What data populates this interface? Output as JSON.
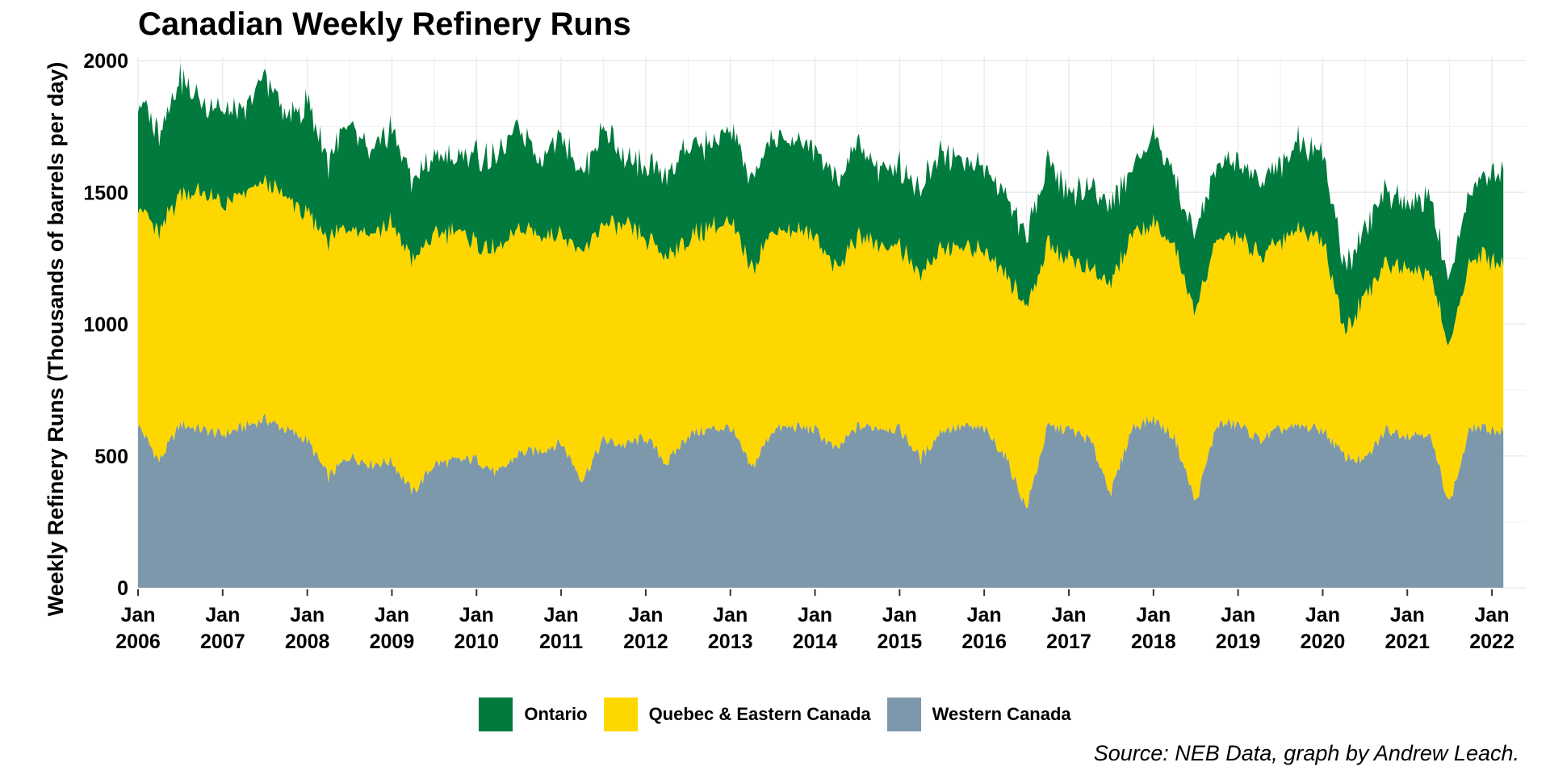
{
  "colors": {
    "ontario": "#007A3D",
    "quebec": "#FFD700",
    "western": "#7D98AA",
    "grid": "#EBEBEB"
  },
  "source": "Source: NEB Data, graph by Andrew Leach.",
  "chart_data": {
    "type": "area",
    "stacked": true,
    "title": "Canadian Weekly Refinery Runs",
    "xlabel": "",
    "ylabel": "Weekly Refinery Runs (Thousands of barrels per day)",
    "xlim": [
      2006.0,
      2022.4
    ],
    "ylim": [
      0,
      2000
    ],
    "y_ticks": [
      0,
      500,
      1000,
      1500,
      2000
    ],
    "x_ticks": [
      {
        "x": 2006,
        "label": [
          "Jan",
          "2006"
        ]
      },
      {
        "x": 2007,
        "label": [
          "Jan",
          "2007"
        ]
      },
      {
        "x": 2008,
        "label": [
          "Jan",
          "2008"
        ]
      },
      {
        "x": 2009,
        "label": [
          "Jan",
          "2009"
        ]
      },
      {
        "x": 2010,
        "label": [
          "Jan",
          "2010"
        ]
      },
      {
        "x": 2011,
        "label": [
          "Jan",
          "2011"
        ]
      },
      {
        "x": 2012,
        "label": [
          "Jan",
          "2012"
        ]
      },
      {
        "x": 2013,
        "label": [
          "Jan",
          "2013"
        ]
      },
      {
        "x": 2014,
        "label": [
          "Jan",
          "2014"
        ]
      },
      {
        "x": 2015,
        "label": [
          "Jan",
          "2015"
        ]
      },
      {
        "x": 2016,
        "label": [
          "Jan",
          "2016"
        ]
      },
      {
        "x": 2017,
        "label": [
          "Jan",
          "2017"
        ]
      },
      {
        "x": 2018,
        "label": [
          "Jan",
          "2018"
        ]
      },
      {
        "x": 2019,
        "label": [
          "Jan",
          "2019"
        ]
      },
      {
        "x": 2020,
        "label": [
          "Jan",
          "2020"
        ]
      },
      {
        "x": 2021,
        "label": [
          "Jan",
          "2021"
        ]
      },
      {
        "x": 2022,
        "label": [
          "Jan",
          "2022"
        ]
      }
    ],
    "grid": true,
    "legend_position": "bottom",
    "x": [
      2006.0,
      2006.25,
      2006.5,
      2006.75,
      2007.0,
      2007.25,
      2007.5,
      2007.75,
      2008.0,
      2008.25,
      2008.5,
      2008.75,
      2009.0,
      2009.25,
      2009.5,
      2009.75,
      2010.0,
      2010.25,
      2010.5,
      2010.75,
      2011.0,
      2011.25,
      2011.5,
      2011.75,
      2012.0,
      2012.25,
      2012.5,
      2012.75,
      2013.0,
      2013.25,
      2013.5,
      2013.75,
      2014.0,
      2014.25,
      2014.5,
      2014.75,
      2015.0,
      2015.25,
      2015.5,
      2015.75,
      2016.0,
      2016.25,
      2016.5,
      2016.75,
      2017.0,
      2017.25,
      2017.5,
      2017.75,
      2018.0,
      2018.25,
      2018.5,
      2018.75,
      2019.0,
      2019.25,
      2019.5,
      2019.75,
      2020.0,
      2020.25,
      2020.5,
      2020.75,
      2021.0,
      2021.25,
      2021.5,
      2021.75,
      2022.0,
      2022.15
    ],
    "series": [
      {
        "name": "Western Canada",
        "color_key": "western",
        "values": [
          620,
          480,
          620,
          600,
          580,
          610,
          640,
          600,
          560,
          420,
          500,
          470,
          480,
          360,
          470,
          480,
          490,
          430,
          510,
          520,
          550,
          410,
          560,
          540,
          570,
          470,
          580,
          600,
          610,
          450,
          600,
          610,
          600,
          520,
          610,
          610,
          600,
          490,
          600,
          610,
          600,
          500,
          300,
          610,
          600,
          560,
          360,
          610,
          640,
          570,
          320,
          620,
          620,
          560,
          600,
          610,
          600,
          500,
          480,
          600,
          580,
          590,
          320,
          610,
          600,
          590
        ]
      },
      {
        "name": "Quebec & Eastern Canada",
        "color_key": "quebec",
        "values": [
          840,
          860,
          880,
          900,
          870,
          880,
          900,
          880,
          850,
          900,
          880,
          880,
          900,
          880,
          870,
          870,
          820,
          840,
          850,
          820,
          800,
          860,
          820,
          830,
          750,
          790,
          740,
          770,
          770,
          760,
          760,
          740,
          740,
          680,
          720,
          700,
          700,
          690,
          700,
          670,
          680,
          700,
          760,
          690,
          650,
          640,
          800,
          730,
          740,
          720,
          720,
          700,
          720,
          700,
          720,
          740,
          730,
          470,
          610,
          640,
          640,
          610,
          600,
          640,
          650,
          640
        ]
      },
      {
        "name": "Ontario",
        "color_key": "ontario",
        "values": [
          400,
          380,
          440,
          340,
          360,
          300,
          410,
          300,
          420,
          300,
          390,
          300,
          360,
          300,
          300,
          270,
          340,
          350,
          390,
          290,
          390,
          290,
          370,
          250,
          260,
          310,
          360,
          310,
          360,
          330,
          360,
          330,
          330,
          330,
          350,
          290,
          300,
          330,
          380,
          320,
          320,
          300,
          260,
          330,
          250,
          310,
          300,
          250,
          340,
          260,
          300,
          280,
          290,
          290,
          290,
          340,
          330,
          250,
          260,
          270,
          240,
          290,
          230,
          270,
          320,
          360
        ]
      }
    ]
  }
}
